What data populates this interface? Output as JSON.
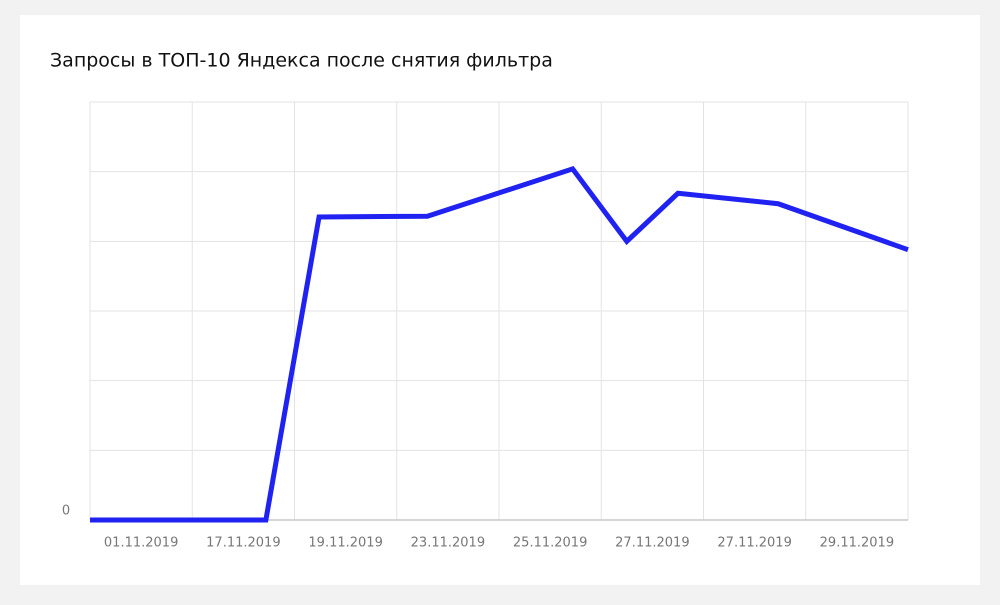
{
  "chart_data": {
    "type": "line",
    "title": "Запросы в ТОП-10 Яндекса после снятия фильтра",
    "categories": [
      "01.11.2019",
      "17.11.2019",
      "19.11.2019",
      "23.11.2019",
      "25.11.2019",
      "27.11.2019",
      "27.11.2019",
      "29.11.2019"
    ],
    "x": [
      0,
      1.72,
      2.24,
      3.3,
      4.72,
      5.25,
      5.75,
      6.73,
      8
    ],
    "series": [
      {
        "color": "#1f22f0",
        "values": [
          0,
          0,
          4.35,
          4.36,
          5.04,
          4.0,
          4.69,
          4.54,
          3.88
        ]
      }
    ],
    "xlim": [
      0,
      8
    ],
    "ylim": [
      0,
      6
    ],
    "yticks": [
      0
    ],
    "ygrid": [
      1,
      2,
      3,
      4,
      5,
      6
    ],
    "xgrid": [
      0,
      1,
      2,
      3,
      4,
      5,
      6,
      7,
      8
    ],
    "grid": true
  }
}
